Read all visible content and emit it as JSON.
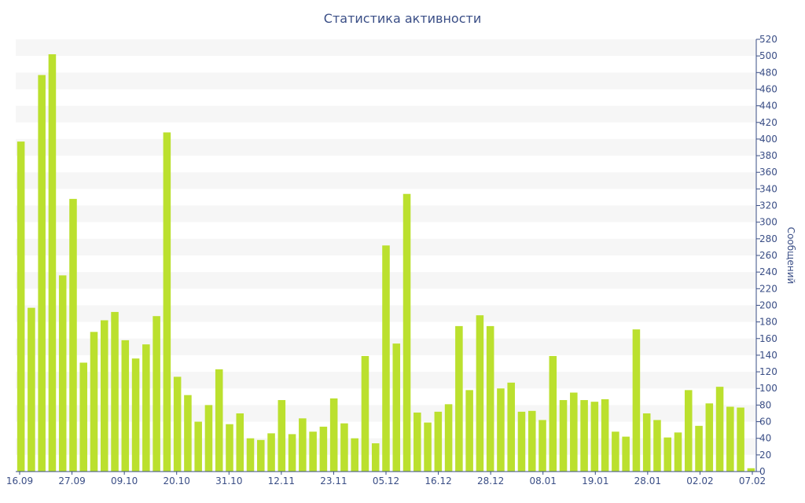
{
  "chart_data": {
    "type": "bar",
    "title": "Статистика активности",
    "ylabel": "Сообщений",
    "ylim": [
      0,
      520
    ],
    "y_ticks": [
      0,
      20,
      40,
      60,
      80,
      100,
      120,
      140,
      160,
      180,
      200,
      220,
      240,
      260,
      280,
      300,
      320,
      340,
      360,
      380,
      400,
      420,
      440,
      460,
      480,
      500,
      520
    ],
    "x_tick_labels": [
      "16.09",
      "27.09",
      "09.10",
      "20.10",
      "31.10",
      "12.11",
      "23.11",
      "05.12",
      "16.12",
      "28.12",
      "08.01",
      "19.01",
      "28.01",
      "02.02",
      "07.02"
    ],
    "grid": "horizontal alternating bands",
    "colors": {
      "bar": "#bbe02e",
      "axis_text": "#3a4e86",
      "band": "#f6f6f6"
    },
    "values": [
      397,
      197,
      477,
      502,
      236,
      328,
      131,
      168,
      182,
      192,
      158,
      136,
      153,
      187,
      408,
      114,
      92,
      60,
      80,
      123,
      57,
      70,
      40,
      38,
      46,
      86,
      45,
      64,
      48,
      54,
      88,
      58,
      40,
      139,
      34,
      272,
      154,
      334,
      71,
      59,
      72,
      81,
      175,
      98,
      188,
      175,
      100,
      107,
      72,
      73,
      62,
      139,
      86,
      95,
      86,
      84,
      87,
      48,
      42,
      171,
      70,
      62,
      41,
      47,
      98,
      55,
      82,
      102,
      78,
      77,
      4
    ]
  }
}
